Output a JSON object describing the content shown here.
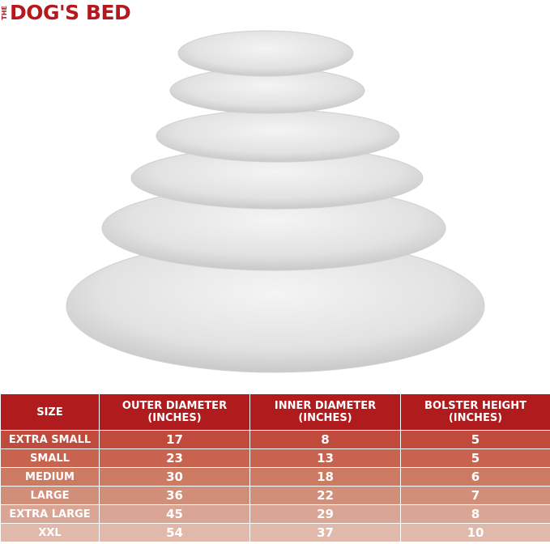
{
  "brand": {
    "prefix": "THE",
    "name": "DOG'S BED",
    "color": "#b5191e"
  },
  "image": {
    "subject": "stacked-round-plush-beds",
    "fur_color": "#e6e6e6"
  },
  "table": {
    "headers": [
      "SIZE",
      "OUTER DIAMETER (INCHES)",
      "INNER DIAMETER (INCHES)",
      "BOLSTER HEIGHT (INCHES)"
    ],
    "header_color": "#b01c1e",
    "rows": [
      {
        "size": "EXTRA SMALL",
        "outer": "17",
        "inner": "8",
        "bolster": "5",
        "color": "#c04a3c"
      },
      {
        "size": "SMALL",
        "outer": "23",
        "inner": "13",
        "bolster": "5",
        "color": "#c8634f"
      },
      {
        "size": "MEDIUM",
        "outer": "30",
        "inner": "18",
        "bolster": "6",
        "color": "#cd7a63"
      },
      {
        "size": "LARGE",
        "outer": "36",
        "inner": "22",
        "bolster": "7",
        "color": "#d18e79"
      },
      {
        "size": "EXTRA LARGE",
        "outer": "45",
        "inner": "29",
        "bolster": "8",
        "color": "#d9a696"
      },
      {
        "size": "XXL",
        "outer": "54",
        "inner": "37",
        "bolster": "10",
        "color": "#e1b9ab"
      }
    ]
  }
}
